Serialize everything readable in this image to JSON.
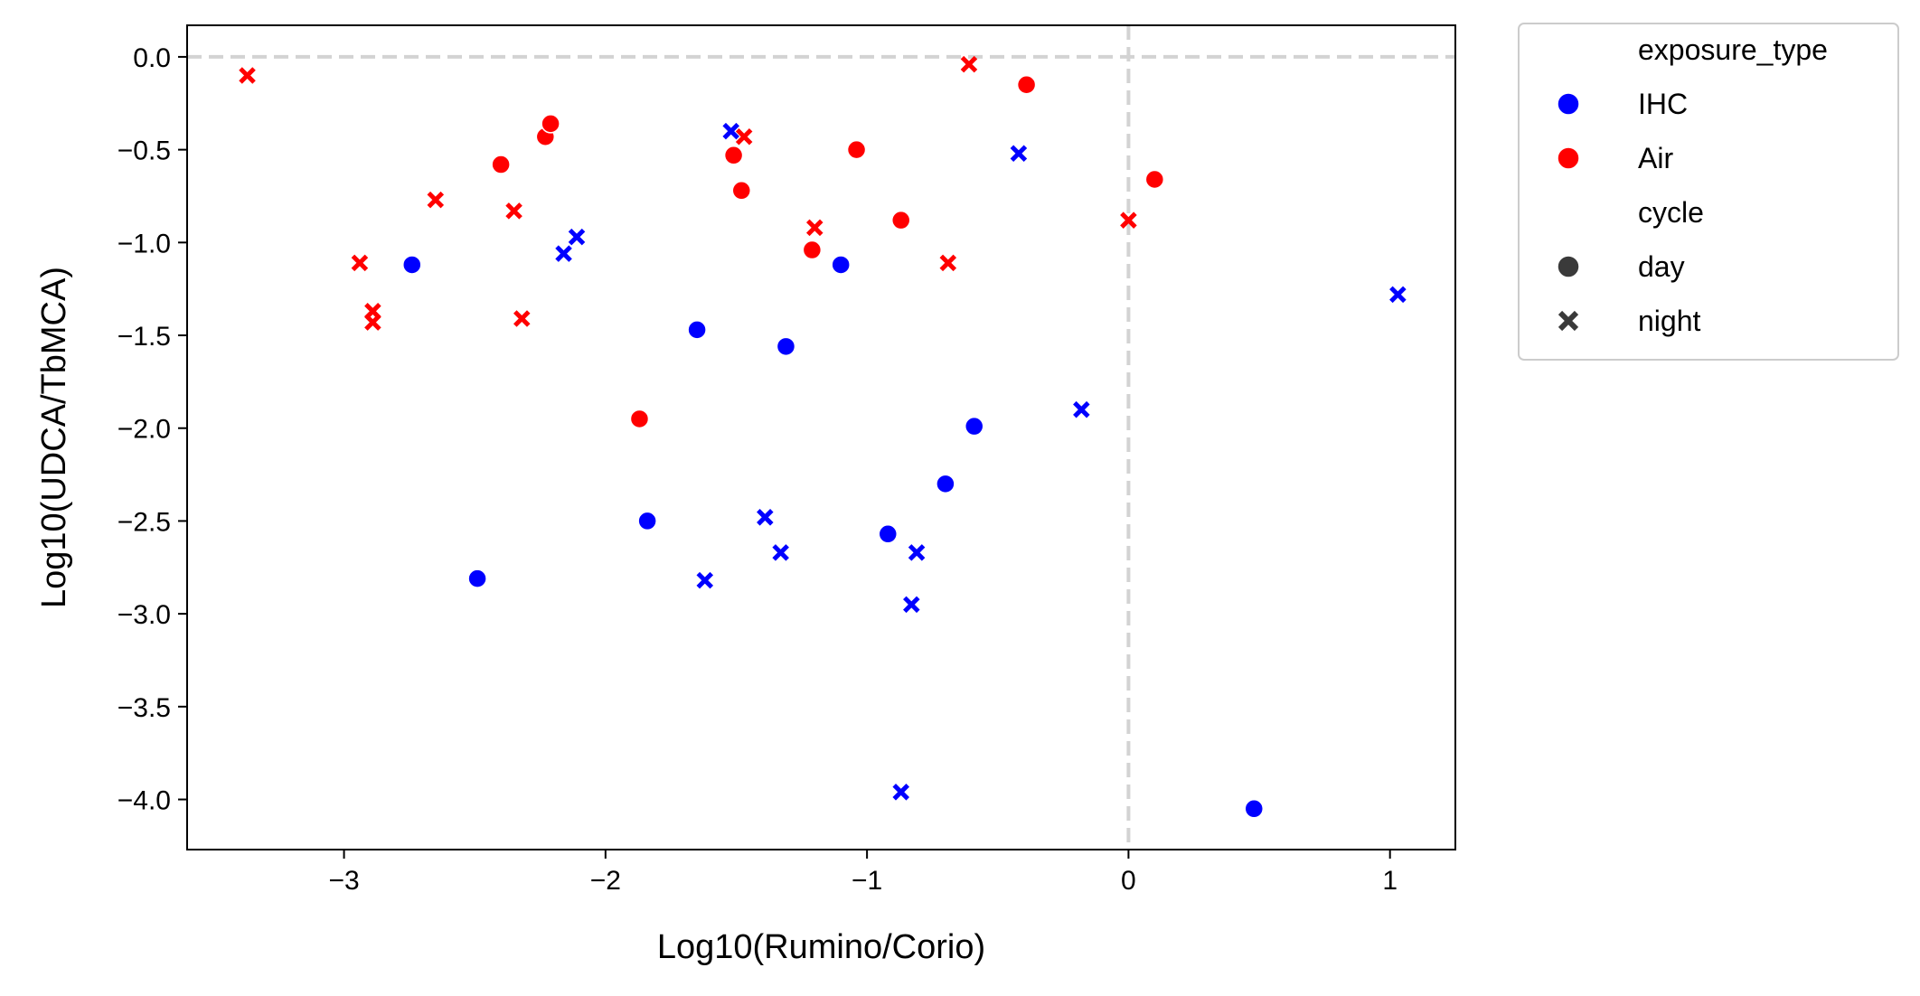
{
  "chart_data": {
    "type": "scatter",
    "title": "",
    "xlabel": "Log10(Rumino/Corio)",
    "ylabel": "Log10(UDCA/TbMCA)",
    "xlim": [
      -3.6,
      1.25
    ],
    "ylim": [
      -4.27,
      0.17
    ],
    "x_ticks": [
      -3,
      -2,
      -1,
      0,
      1
    ],
    "x_tick_labels": [
      "−3",
      "−2",
      "−1",
      "0",
      "1"
    ],
    "y_ticks": [
      0.0,
      -0.5,
      -1.0,
      -1.5,
      -2.0,
      -2.5,
      -3.0,
      -3.5,
      -4.0
    ],
    "y_tick_labels": [
      "0.0",
      "−0.5",
      "−1.0",
      "−1.5",
      "−2.0",
      "−2.5",
      "−3.0",
      "−3.5",
      "−4.0"
    ],
    "reference_lines": {
      "x": 0,
      "y": 0,
      "style": "dashed",
      "color": "#d3d3d3"
    },
    "grid": false,
    "legend": {
      "placement": "outside-top-right",
      "hue_title": "exposure_type",
      "style_title": "cycle",
      "hue_entries": [
        {
          "label": "IHC",
          "color": "#0000ff"
        },
        {
          "label": "Air",
          "color": "#ff0000"
        }
      ],
      "style_entries": [
        {
          "label": "day",
          "marker": "circle"
        },
        {
          "label": "night",
          "marker": "x"
        }
      ],
      "marker_color": "#3a3a3a"
    },
    "series": [
      {
        "exposure_type": "IHC",
        "cycle": "day",
        "color": "#0000ff",
        "marker": "circle",
        "points": [
          [
            -2.74,
            -1.12
          ],
          [
            -2.49,
            -2.81
          ],
          [
            -1.84,
            -2.5
          ],
          [
            -1.65,
            -1.47
          ],
          [
            -1.31,
            -1.56
          ],
          [
            -1.1,
            -1.12
          ],
          [
            -0.92,
            -2.57
          ],
          [
            -0.7,
            -2.3
          ],
          [
            -0.59,
            -1.99
          ],
          [
            0.48,
            -4.05
          ]
        ]
      },
      {
        "exposure_type": "IHC",
        "cycle": "night",
        "color": "#0000ff",
        "marker": "x",
        "points": [
          [
            -2.16,
            -1.06
          ],
          [
            -2.11,
            -0.97
          ],
          [
            -1.62,
            -2.82
          ],
          [
            -1.52,
            -0.4
          ],
          [
            -1.39,
            -2.48
          ],
          [
            -1.33,
            -2.67
          ],
          [
            -0.87,
            -3.96
          ],
          [
            -0.83,
            -2.95
          ],
          [
            -0.81,
            -2.67
          ],
          [
            -0.42,
            -0.52
          ],
          [
            -0.18,
            -1.9
          ],
          [
            1.03,
            -1.28
          ]
        ]
      },
      {
        "exposure_type": "Air",
        "cycle": "day",
        "color": "#ff0000",
        "marker": "circle",
        "points": [
          [
            -2.4,
            -0.58
          ],
          [
            -2.23,
            -0.43
          ],
          [
            -2.21,
            -0.36
          ],
          [
            -1.87,
            -1.95
          ],
          [
            -1.51,
            -0.53
          ],
          [
            -1.48,
            -0.72
          ],
          [
            -1.21,
            -1.04
          ],
          [
            -1.04,
            -0.5
          ],
          [
            -0.87,
            -0.88
          ],
          [
            -0.39,
            -0.15
          ],
          [
            0.1,
            -0.66
          ]
        ]
      },
      {
        "exposure_type": "Air",
        "cycle": "night",
        "color": "#ff0000",
        "marker": "x",
        "points": [
          [
            -3.37,
            -0.1
          ],
          [
            -2.94,
            -1.11
          ],
          [
            -2.89,
            -1.37
          ],
          [
            -2.89,
            -1.43
          ],
          [
            -2.65,
            -0.77
          ],
          [
            -2.35,
            -0.83
          ],
          [
            -2.32,
            -1.41
          ],
          [
            -1.47,
            -0.43
          ],
          [
            -1.2,
            -0.92
          ],
          [
            -0.69,
            -1.11
          ],
          [
            -0.61,
            -0.04
          ],
          [
            0.0,
            -0.88
          ]
        ]
      }
    ]
  }
}
